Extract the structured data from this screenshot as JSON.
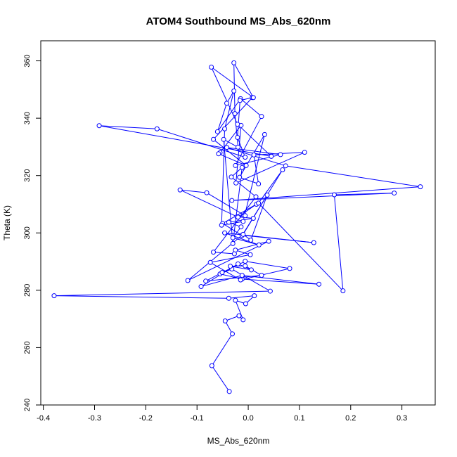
{
  "chart_data": {
    "type": "line",
    "title": "ATOM4 Southbound MS_Abs_620nm",
    "xlabel": "MS_Abs_620nm",
    "ylabel": "Theta (K)",
    "xlim": [
      -0.405,
      0.365
    ],
    "ylim": [
      240,
      367
    ],
    "xticks": [
      -0.4,
      -0.3,
      -0.2,
      -0.1,
      0.0,
      0.1,
      0.2,
      0.3
    ],
    "xtick_labels": [
      "-0.4",
      "-0.3",
      "-0.2",
      "-0.1",
      "0.0",
      "0.1",
      "0.2",
      "0.3"
    ],
    "yticks": [
      240,
      260,
      280,
      300,
      320,
      340,
      360
    ],
    "ytick_labels": [
      "240",
      "260",
      "280",
      "300",
      "320",
      "340",
      "360"
    ],
    "grid": false,
    "marker": "open-circle",
    "color": "#0000ff",
    "series": [
      {
        "x": [
          -0.037,
          -0.071,
          -0.031,
          -0.045,
          -0.018,
          -0.01,
          -0.025,
          -0.005,
          0.012,
          -0.038,
          -0.379,
          0.043,
          -0.032,
          -0.055,
          -0.012,
          0.138,
          -0.012,
          -0.092,
          -0.02,
          0.006,
          -0.035,
          -0.006,
          0.026,
          -0.083,
          -0.051,
          -0.006,
          0.081,
          -0.015,
          -0.074,
          0.004,
          -0.025,
          0.04,
          -0.118,
          -0.012,
          0.128,
          -0.046,
          0.021,
          -0.03,
          -0.014,
          -0.038,
          0.01,
          -0.022,
          -0.006,
          -0.081,
          -0.133,
          -0.02,
          0.016,
          -0.05,
          -0.012,
          0.037,
          0.005,
          -0.01,
          0.067,
          0.02,
          0.185,
          0.168,
          0.285,
          -0.032,
          0.336,
          0.073,
          -0.042,
          0.063,
          -0.025,
          0.026,
          -0.015,
          -0.06,
          -0.042,
          -0.028,
          -0.046,
          -0.052,
          -0.01,
          0.032,
          -0.017,
          0.02,
          0.011,
          0.11,
          -0.024,
          -0.014,
          -0.055,
          -0.058,
          -0.004,
          -0.068,
          0.008,
          -0.016,
          -0.021,
          -0.006,
          -0.178,
          -0.291,
          0.045,
          -0.021,
          -0.072,
          0.01,
          -0.028,
          -0.026,
          -0.02,
          -0.048,
          -0.03,
          -0.012,
          -0.033,
          0.015,
          -0.068,
          -0.027
        ],
        "y": [
          244.7,
          253.7,
          264.8,
          269.3,
          271.1,
          269.7,
          276.5,
          275.3,
          278.1,
          277.2,
          278.1,
          279.7,
          287.4,
          285.7,
          283.9,
          282.1,
          285.2,
          281.3,
          289.2,
          287.1,
          288.4,
          288.5,
          285.2,
          283.2,
          286.2,
          290.1,
          287.6,
          283.6,
          289.7,
          292.4,
          294.0,
          297.1,
          283.4,
          299.2,
          296.6,
          300.0,
          295.8,
          298.3,
          302.1,
          303.7,
          305.1,
          305.6,
          306.0,
          314.0,
          315.0,
          305.5,
          310.0,
          303.3,
          299.1,
          313.2,
          297.5,
          299.5,
          322.0,
          310.4,
          279.8,
          313.3,
          313.9,
          311.3,
          316.1,
          323.4,
          329.8,
          327.3,
          323.5,
          340.6,
          346.8,
          335.3,
          345.2,
          349.5,
          336.3,
          302.7,
          304.0,
          334.3,
          319.4,
          317.1,
          327.2,
          328.1,
          317.4,
          337.5,
          328.0,
          327.6,
          323.5,
          332.6,
          347.2,
          346.2,
          333.3,
          326.4,
          336.3,
          337.4,
          326.7,
          337.9,
          357.8,
          347.2,
          359.3,
          341.6,
          329.9,
          332.6,
          296.3,
          322.8,
          319.5,
          312.6,
          293.3,
          292.7
        ]
      }
    ]
  }
}
